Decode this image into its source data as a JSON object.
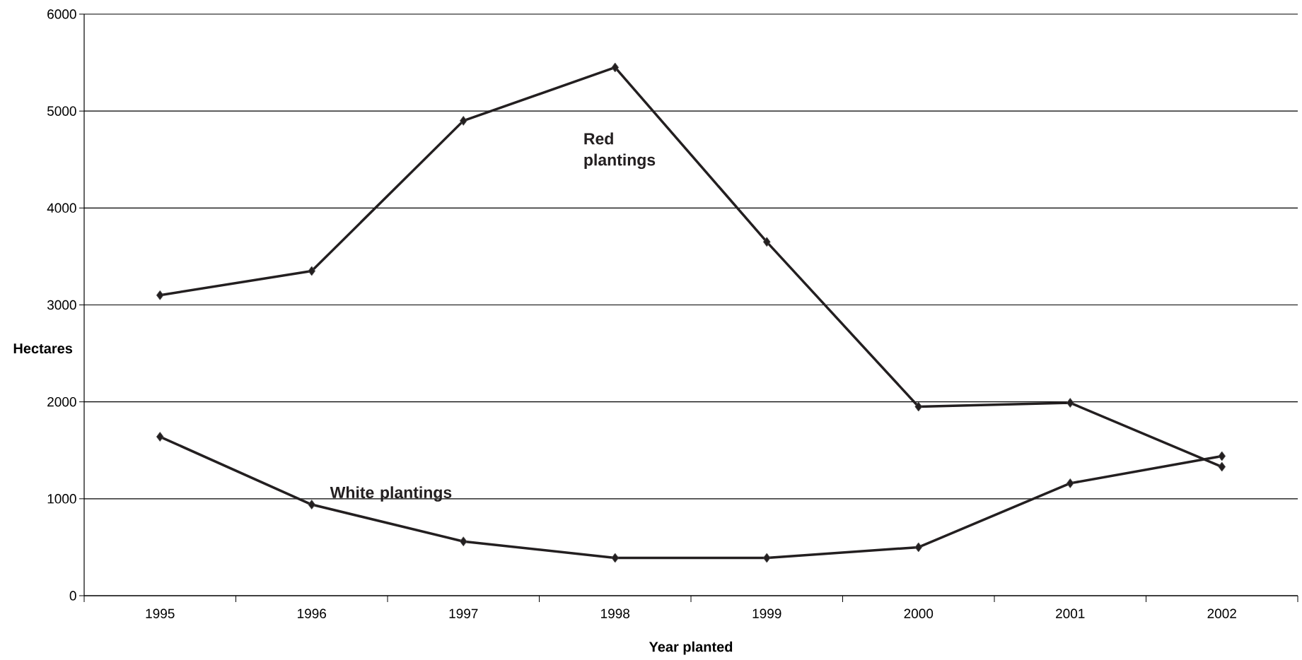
{
  "chart_data": {
    "type": "line",
    "xlabel": "Year planted",
    "ylabel": "Hectares",
    "categories": [
      "1995",
      "1996",
      "1997",
      "1998",
      "1999",
      "2000",
      "2001",
      "2002"
    ],
    "series": [
      {
        "name": "Red plantings",
        "color": "#231f20",
        "values": [
          3100,
          3350,
          4900,
          5450,
          3650,
          1950,
          1990,
          1330
        ]
      },
      {
        "name": "White plantings",
        "color": "#231f20",
        "values": [
          1640,
          940,
          560,
          390,
          390,
          500,
          1160,
          1440
        ]
      }
    ],
    "ylim": [
      0,
      6000
    ],
    "yticks": [
      0,
      1000,
      2000,
      3000,
      4000,
      5000,
      6000
    ],
    "grid": "y",
    "legend": false,
    "marker": "diamond",
    "line_style": "solid"
  }
}
